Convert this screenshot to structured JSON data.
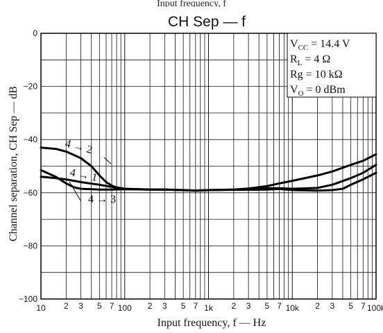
{
  "caption_fragment": "Input frequency, f",
  "chart_data": {
    "type": "line",
    "title": "CH Sep — f",
    "xlabel": "Input frequency, f — Hz",
    "ylabel": "Channel separation, CH Sep — dB",
    "xscale": "log",
    "xlim": [
      10,
      100000
    ],
    "ylim": [
      -100,
      0
    ],
    "grid": true,
    "y_ticks": [
      "0",
      "−20",
      "−40",
      "−60",
      "−80",
      "−100"
    ],
    "x_tick_labels": [
      {
        "x": 10,
        "label": "10"
      },
      {
        "x": 20,
        "label": "2"
      },
      {
        "x": 30,
        "label": "3"
      },
      {
        "x": 50,
        "label": "5"
      },
      {
        "x": 70,
        "label": "7"
      },
      {
        "x": 100,
        "label": "100"
      },
      {
        "x": 200,
        "label": "2"
      },
      {
        "x": 300,
        "label": "3"
      },
      {
        "x": 500,
        "label": "5"
      },
      {
        "x": 700,
        "label": "7"
      },
      {
        "x": 1000,
        "label": "1k"
      },
      {
        "x": 2000,
        "label": "2"
      },
      {
        "x": 3000,
        "label": "3"
      },
      {
        "x": 5000,
        "label": "5"
      },
      {
        "x": 7000,
        "label": "7"
      },
      {
        "x": 10000,
        "label": "10k"
      },
      {
        "x": 20000,
        "label": "2"
      },
      {
        "x": 30000,
        "label": "3"
      },
      {
        "x": 50000,
        "label": "5"
      },
      {
        "x": 70000,
        "label": "7"
      },
      {
        "x": 100000,
        "label": "100k"
      }
    ],
    "conditions": [
      {
        "main": "V",
        "sub": "CC",
        "rest": " = 14.4 V"
      },
      {
        "main": "R",
        "sub": "L",
        "rest": " = 4 Ω"
      },
      {
        "main": "Rg",
        "sub": "",
        "rest": " = 10 kΩ"
      },
      {
        "main": "V",
        "sub": "O",
        "rest": " = 0 dBm"
      }
    ],
    "series": [
      {
        "name": "4 → 2",
        "x": [
          10,
          15,
          20,
          30,
          40,
          50,
          60,
          70,
          80,
          100,
          150,
          200,
          300,
          500,
          700,
          1000,
          2000,
          3000,
          5000,
          7000,
          10000,
          20000,
          30000,
          50000,
          70000,
          100000
        ],
        "y": [
          -43,
          -43.5,
          -44.5,
          -47,
          -50,
          -53.5,
          -56,
          -57.3,
          -58,
          -58.5,
          -58.7,
          -58.8,
          -58.8,
          -59,
          -59.2,
          -59,
          -58.8,
          -58.4,
          -57.5,
          -56.5,
          -55.5,
          -53.5,
          -52,
          -49.5,
          -48,
          -45.5
        ]
      },
      {
        "name": "4 → 1",
        "x": [
          10,
          15,
          20,
          30,
          50,
          70,
          100,
          200,
          300,
          500,
          700,
          1000,
          2000,
          3000,
          5000,
          7000,
          10000,
          20000,
          30000,
          50000,
          70000,
          100000
        ],
        "y": [
          -54,
          -54.5,
          -55,
          -56,
          -57,
          -57.8,
          -58.5,
          -58.8,
          -58.8,
          -59,
          -59.2,
          -59,
          -58.8,
          -58.6,
          -58.3,
          -58.3,
          -58.5,
          -58.2,
          -57,
          -54.5,
          -52.5,
          -49.5
        ]
      },
      {
        "name": "4 → 3",
        "x": [
          10,
          15,
          20,
          25,
          30,
          50,
          70,
          100,
          200,
          300,
          500,
          700,
          1000,
          2000,
          3000,
          5000,
          7000,
          10000,
          20000,
          30000,
          40000,
          50000,
          70000,
          100000
        ],
        "y": [
          -51.5,
          -54,
          -56.5,
          -58,
          -58.5,
          -58.8,
          -58.8,
          -58.7,
          -58.8,
          -58.8,
          -59,
          -59.2,
          -59,
          -58.9,
          -58.9,
          -58.8,
          -58.6,
          -59,
          -59.2,
          -59,
          -58.5,
          -57,
          -55,
          -52.5
        ]
      }
    ],
    "annotations": [
      {
        "text": "4 → 2",
        "series": "4 → 2"
      },
      {
        "text": "4 → 1",
        "series": "4 → 1"
      },
      {
        "text": "4 → 3",
        "series": "4 → 3"
      }
    ]
  }
}
